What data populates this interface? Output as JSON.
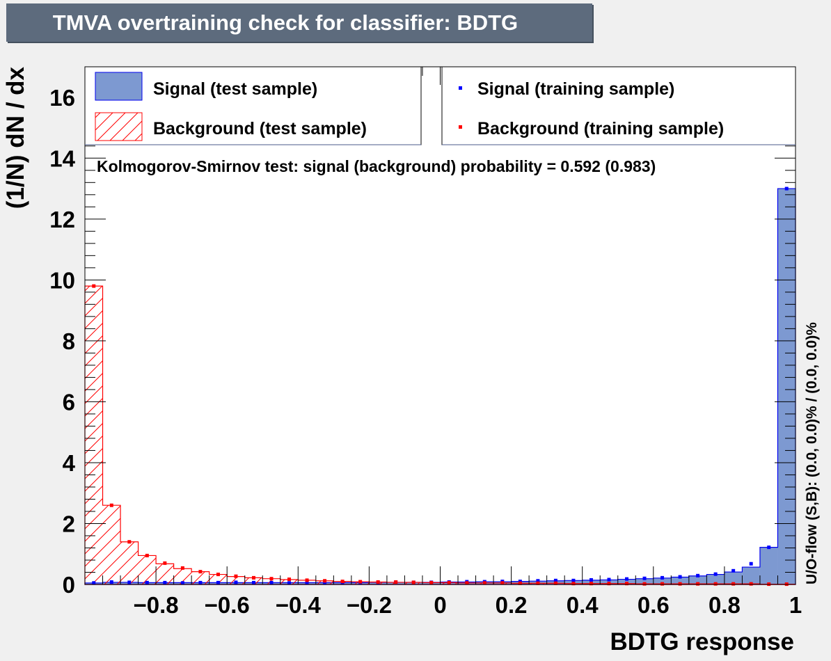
{
  "title": "TMVA overtraining check for classifier: BDTG",
  "chart_data": {
    "type": "bar",
    "xlabel": "BDTG response",
    "ylabel": "(1/N) dN / dx",
    "xlim": [
      -1.0,
      1.0
    ],
    "ylim": [
      0,
      17
    ],
    "x_ticks": [
      "−0.8",
      "−0.6",
      "−0.4",
      "−0.2",
      "0",
      "0.2",
      "0.4",
      "0.6",
      "0.8",
      "1"
    ],
    "y_ticks": [
      "0",
      "2",
      "4",
      "6",
      "8",
      "10",
      "12",
      "14",
      "16"
    ],
    "bins": 40,
    "series": [
      {
        "name": "Signal (test sample)",
        "style": "filled-histogram",
        "color": "#7d99d1",
        "line_color": "#0000ee",
        "values": [
          0.05,
          0.07,
          0.07,
          0.06,
          0.06,
          0.06,
          0.06,
          0.06,
          0.06,
          0.06,
          0.06,
          0.06,
          0.06,
          0.06,
          0.06,
          0.06,
          0.07,
          0.07,
          0.07,
          0.07,
          0.08,
          0.08,
          0.09,
          0.09,
          0.1,
          0.11,
          0.12,
          0.13,
          0.14,
          0.15,
          0.17,
          0.19,
          0.21,
          0.24,
          0.28,
          0.33,
          0.41,
          0.57,
          1.22,
          13.0
        ]
      },
      {
        "name": "Background (test sample)",
        "style": "hatched-histogram",
        "color": "#ff0000",
        "values": [
          9.8,
          2.6,
          1.4,
          0.95,
          0.68,
          0.52,
          0.42,
          0.33,
          0.26,
          0.22,
          0.19,
          0.16,
          0.14,
          0.12,
          0.1,
          0.09,
          0.08,
          0.07,
          0.07,
          0.06,
          0.06,
          0.05,
          0.05,
          0.05,
          0.04,
          0.04,
          0.04,
          0.03,
          0.03,
          0.03,
          0.03,
          0.02,
          0.02,
          0.02,
          0.02,
          0.02,
          0.02,
          0.02,
          0.01,
          0.01
        ]
      },
      {
        "name": "Signal (training sample)",
        "style": "markers",
        "color": "#0000ff",
        "values": [
          0.05,
          0.08,
          0.07,
          0.06,
          0.06,
          0.05,
          0.06,
          0.06,
          0.07,
          0.06,
          0.06,
          0.05,
          0.06,
          0.06,
          0.06,
          0.06,
          0.07,
          0.08,
          0.07,
          0.07,
          0.08,
          0.09,
          0.09,
          0.1,
          0.1,
          0.12,
          0.13,
          0.13,
          0.15,
          0.16,
          0.18,
          0.2,
          0.22,
          0.25,
          0.29,
          0.34,
          0.45,
          0.68,
          1.22,
          13.0
        ]
      },
      {
        "name": "Background (training sample)",
        "style": "markers",
        "color": "#ff0000",
        "values": [
          9.8,
          2.6,
          1.4,
          0.95,
          0.7,
          0.54,
          0.42,
          0.33,
          0.27,
          0.22,
          0.19,
          0.17,
          0.14,
          0.12,
          0.1,
          0.09,
          0.08,
          0.08,
          0.07,
          0.06,
          0.06,
          0.05,
          0.05,
          0.05,
          0.04,
          0.04,
          0.04,
          0.03,
          0.03,
          0.03,
          0.03,
          0.02,
          0.02,
          0.02,
          0.02,
          0.02,
          0.02,
          0.02,
          0.01,
          0.01
        ]
      }
    ],
    "annotation": "Kolmogorov-Smirnov test: signal (background) probability = 0.592 (0.983)",
    "side_label": "U/O-flow (S,B): (0.0, 0.0)% / (0.0, 0.0)%"
  },
  "legend": {
    "left": [
      "Signal (test sample)",
      "Background (test sample)"
    ],
    "right": [
      "Signal (training sample)",
      "Background (training sample)"
    ]
  }
}
